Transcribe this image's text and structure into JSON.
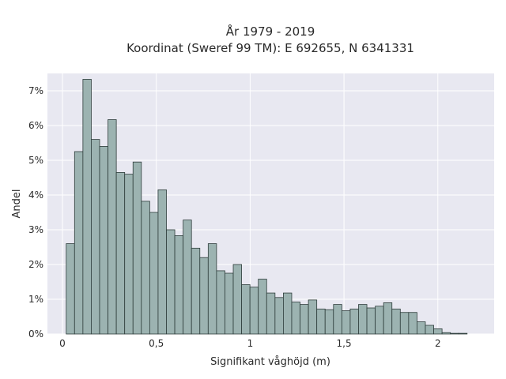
{
  "chart_data": {
    "type": "bar",
    "title": "År 1979 - 2019",
    "subtitle": "Koordinat (Sweref 99 TM): E 692655, N 6341331",
    "xlabel": "Signifikant våghöjd (m)",
    "ylabel": "Andel",
    "xlim": [
      -0.08,
      2.3
    ],
    "ylim": [
      0,
      7.5
    ],
    "x_ticks": [
      {
        "value": 0,
        "label": "0"
      },
      {
        "value": 0.5,
        "label": "0,5"
      },
      {
        "value": 1,
        "label": "1"
      },
      {
        "value": 1.5,
        "label": "1,5"
      },
      {
        "value": 2,
        "label": "2"
      }
    ],
    "y_ticks": [
      {
        "value": 0,
        "label": "0%"
      },
      {
        "value": 1,
        "label": "1%"
      },
      {
        "value": 2,
        "label": "2%"
      },
      {
        "value": 3,
        "label": "3%"
      },
      {
        "value": 4,
        "label": "4%"
      },
      {
        "value": 5,
        "label": "5%"
      },
      {
        "value": 6,
        "label": "6%"
      },
      {
        "value": 7,
        "label": "7%"
      }
    ],
    "bin_start": 0.02,
    "bin_width": 0.0445,
    "values": [
      2.6,
      5.25,
      7.33,
      5.6,
      5.4,
      6.17,
      4.65,
      4.6,
      4.95,
      3.82,
      3.5,
      4.15,
      3.0,
      2.83,
      3.28,
      2.47,
      2.2,
      2.6,
      1.82,
      1.75,
      2.0,
      1.42,
      1.35,
      1.58,
      1.18,
      1.05,
      1.18,
      0.92,
      0.85,
      0.98,
      0.72,
      0.7,
      0.85,
      0.67,
      0.72,
      0.85,
      0.75,
      0.8,
      0.9,
      0.72,
      0.62,
      0.62,
      0.35,
      0.25,
      0.15,
      0.04,
      0.02,
      0.02
    ],
    "grid": true,
    "legend": "none",
    "colors": {
      "bar_fill": "#9cb3b1",
      "bar_stroke": "#2e3d3b",
      "plot_bg": "#e8e8f1",
      "grid": "#ffffff"
    }
  }
}
